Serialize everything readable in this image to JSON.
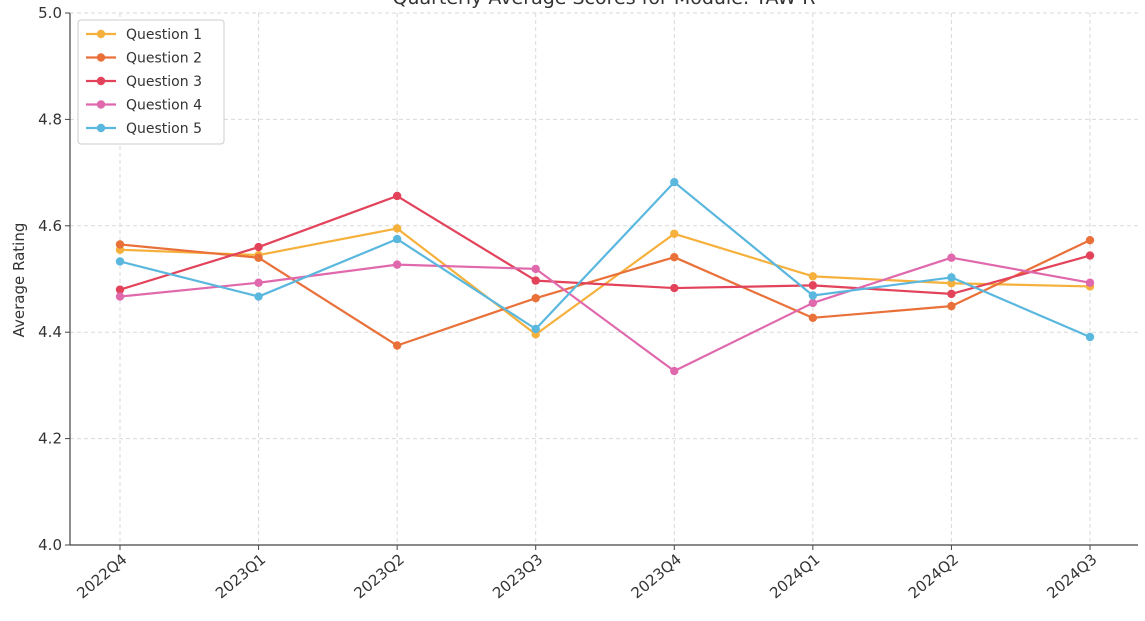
{
  "chart_data": {
    "type": "line",
    "title": "Quarterly Average Scores for Module: TAW-R",
    "xlabel": "",
    "ylabel": "Average Rating",
    "ylim": [
      4.0,
      5.0
    ],
    "yticks": [
      "4.0",
      "4.2",
      "4.4",
      "4.6",
      "4.8",
      "5.0"
    ],
    "grid": true,
    "legend_position": "top-left",
    "categories": [
      "2022Q4",
      "2023Q1",
      "2023Q2",
      "2023Q3",
      "2023Q4",
      "2024Q1",
      "2024Q2",
      "2024Q3"
    ],
    "series": [
      {
        "name": "Question 1",
        "color": "#f6b03c",
        "values": [
          4.555,
          4.545,
          4.595,
          4.396,
          4.585,
          4.505,
          4.492,
          4.486
        ]
      },
      {
        "name": "Question 2",
        "color": "#ea7039",
        "values": [
          4.565,
          4.54,
          4.375,
          4.464,
          4.541,
          4.427,
          4.449,
          4.573
        ]
      },
      {
        "name": "Question 3",
        "color": "#e2435b",
        "values": [
          4.48,
          4.56,
          4.656,
          4.497,
          4.483,
          4.488,
          4.472,
          4.544
        ]
      },
      {
        "name": "Question 4",
        "color": "#e069ad",
        "values": [
          4.467,
          4.493,
          4.527,
          4.519,
          4.327,
          4.455,
          4.54,
          4.493
        ]
      },
      {
        "name": "Question 5",
        "color": "#5ab7de",
        "values": [
          4.533,
          4.467,
          4.575,
          4.406,
          4.682,
          4.469,
          4.503,
          4.391
        ]
      }
    ]
  }
}
